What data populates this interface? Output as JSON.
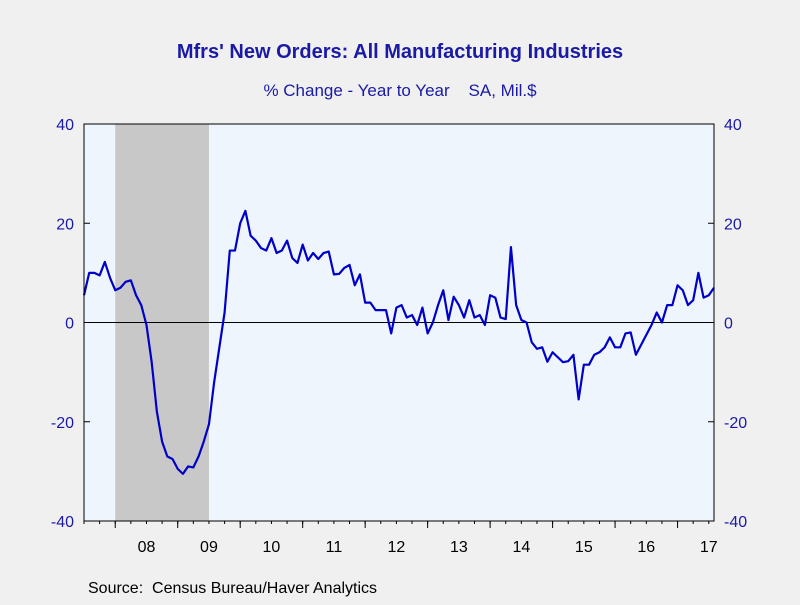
{
  "chart_data": {
    "type": "line",
    "title": "Mfrs' New Orders: All Manufacturing Industries",
    "subtitle": "% Change - Year to Year    SA, Mil.$",
    "source": "Source:  Census Bureau/Haver Analytics",
    "ylim": [
      -40,
      40
    ],
    "yticks": [
      -40,
      -20,
      0,
      20,
      40
    ],
    "x_range": [
      "2007-07",
      "2017-08"
    ],
    "xticks": [
      {
        "label": "08",
        "year": 2008
      },
      {
        "label": "09",
        "year": 2009
      },
      {
        "label": "10",
        "year": 2010
      },
      {
        "label": "11",
        "year": 2011
      },
      {
        "label": "12",
        "year": 2012
      },
      {
        "label": "13",
        "year": 2013
      },
      {
        "label": "14",
        "year": 2014
      },
      {
        "label": "15",
        "year": 2015
      },
      {
        "label": "16",
        "year": 2016
      },
      {
        "label": "17",
        "year": 2017
      }
    ],
    "recession": {
      "start": "2008-01",
      "end": "2009-06"
    },
    "grid": false,
    "colors": {
      "line": "#0000c8",
      "text": "#1a1aa6",
      "recession": "#c8c8c8",
      "plot_bg": "#eef5fd",
      "zero_line": "#000000"
    },
    "series": [
      {
        "start": "2007-07",
        "values": [
          5.5,
          10,
          10,
          9.5,
          12.2,
          9,
          6.5,
          7,
          8.2,
          8.5,
          5.5,
          3.5,
          -0.5,
          -8,
          -18,
          -24,
          -27,
          -27.5,
          -29.5,
          -30.5,
          -29,
          -29.2,
          -27,
          -24,
          -20.5,
          -12,
          -5,
          2,
          14.5,
          14.5,
          20,
          22.5,
          17.5,
          16.5,
          15,
          14.5,
          17,
          14,
          14.5,
          16.5,
          13,
          12,
          15.7,
          12.5,
          14,
          12.8,
          14,
          14.3,
          9.7,
          9.8,
          11,
          11.6,
          7.5,
          9.7,
          4,
          4,
          2.5,
          2.5,
          2.5,
          -2.2,
          3,
          3.5,
          1,
          1.5,
          -0.5,
          3,
          -2.2,
          0,
          3.5,
          6.5,
          0.5,
          5.2,
          3.5,
          1,
          4.5,
          1,
          1.5,
          -0.5,
          5.5,
          5,
          1,
          0.7,
          15.2,
          3.5,
          0.5,
          0,
          -4,
          -5.3,
          -5,
          -7.9,
          -6,
          -7,
          -8,
          -7.8,
          -6.5,
          -15.5,
          -8.5,
          -8.5,
          -6.5,
          -6,
          -5,
          -3,
          -5,
          -5,
          -2.2,
          -2,
          -6.5,
          -4.5,
          -2.5,
          -0.5,
          2,
          0,
          3.5,
          3.5,
          7.5,
          6.5,
          3.5,
          4.5,
          10,
          5,
          5.5,
          7
        ]
      }
    ]
  }
}
